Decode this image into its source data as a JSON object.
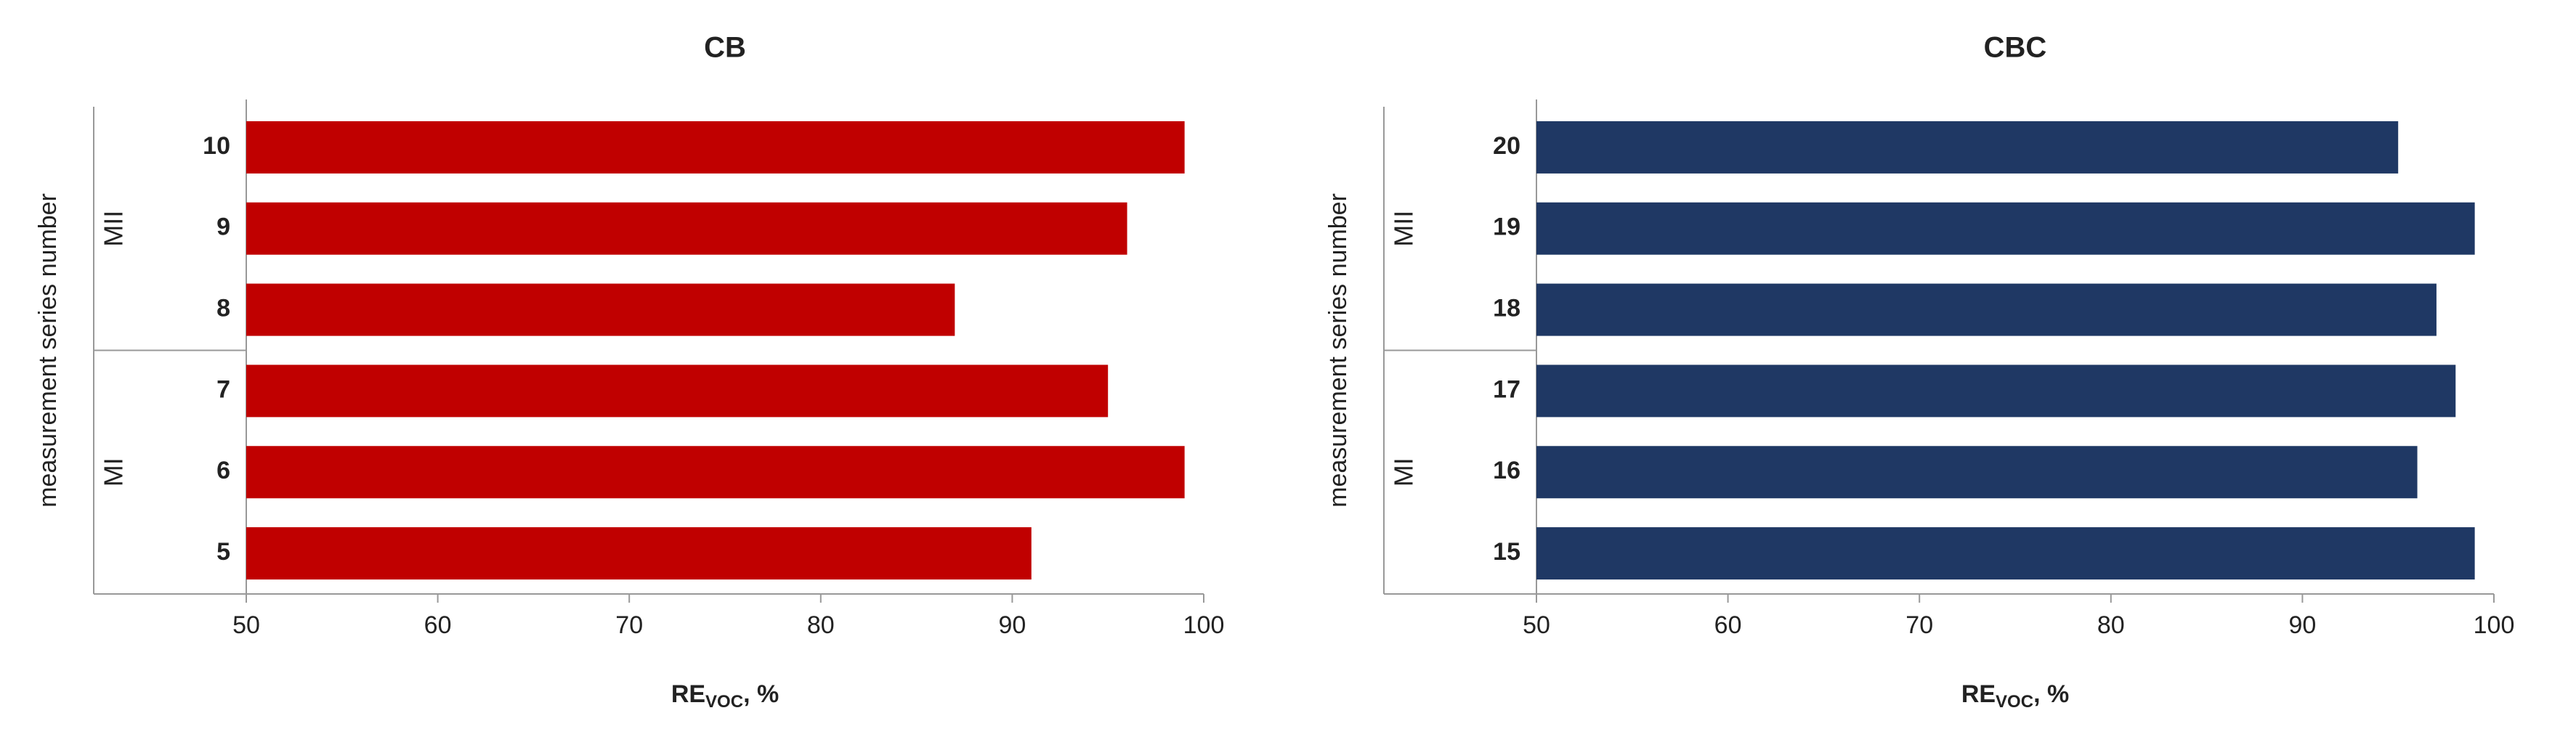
{
  "chart_data": [
    {
      "type": "bar",
      "orientation": "horizontal",
      "title": "CB",
      "x_label": {
        "main": "RE",
        "sub": "VOC",
        "suffix": ", %"
      },
      "y_label": "measurement series number",
      "categories": [
        "5",
        "6",
        "7",
        "8",
        "9",
        "10"
      ],
      "values": [
        91,
        99,
        95,
        87,
        96,
        99
      ],
      "groups": [
        {
          "label": "MI",
          "categories": [
            "5",
            "6",
            "7"
          ]
        },
        {
          "label": "MII",
          "categories": [
            "8",
            "9",
            "10"
          ]
        }
      ],
      "color": "#c00000",
      "xlim": [
        50,
        100
      ],
      "xticks": [
        50,
        60,
        70,
        80,
        90,
        100
      ]
    },
    {
      "type": "bar",
      "orientation": "horizontal",
      "title": "CBC",
      "x_label": {
        "main": "RE",
        "sub": "VOC",
        "suffix": ", %"
      },
      "y_label": "measurement series number",
      "categories": [
        "15",
        "16",
        "17",
        "18",
        "19",
        "20"
      ],
      "values": [
        99,
        96,
        98,
        97,
        99,
        95
      ],
      "groups": [
        {
          "label": "MI",
          "categories": [
            "15",
            "16",
            "17"
          ]
        },
        {
          "label": "MII",
          "categories": [
            "18",
            "19",
            "20"
          ]
        }
      ],
      "color": "#1f3864",
      "xlim": [
        50,
        100
      ],
      "xticks": [
        50,
        60,
        70,
        80,
        90,
        100
      ]
    }
  ]
}
